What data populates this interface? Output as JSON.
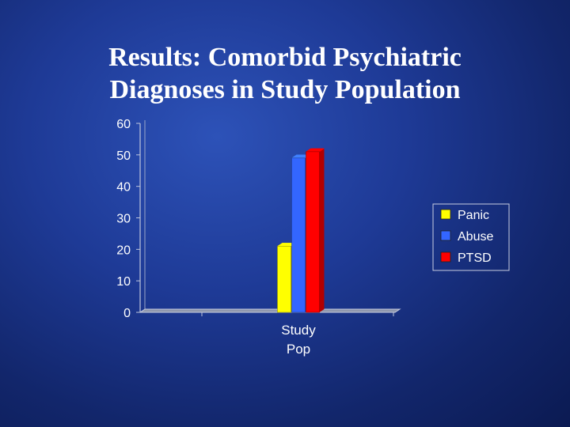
{
  "slide": {
    "title_line1": "Results: Comorbid Psychiatric",
    "title_line2": "Diagnoses in Study Population"
  },
  "chart_data": {
    "type": "bar",
    "title": "Results: Comorbid Psychiatric Diagnoses in Study Population",
    "categories": [
      [
        "Study",
        "Pop"
      ]
    ],
    "series": [
      {
        "name": "Panic",
        "values": [
          21
        ],
        "color": "#ffff00"
      },
      {
        "name": "Abuse",
        "values": [
          49
        ],
        "color": "#3366ff"
      },
      {
        "name": "PTSD",
        "values": [
          51
        ],
        "color": "#ff0000"
      }
    ],
    "ylim": [
      0,
      60
    ],
    "yticks": [
      0,
      10,
      20,
      30,
      40,
      50,
      60
    ],
    "xlabel": "",
    "ylabel": "",
    "grid": false,
    "legend": "right",
    "style": "3d-column"
  }
}
